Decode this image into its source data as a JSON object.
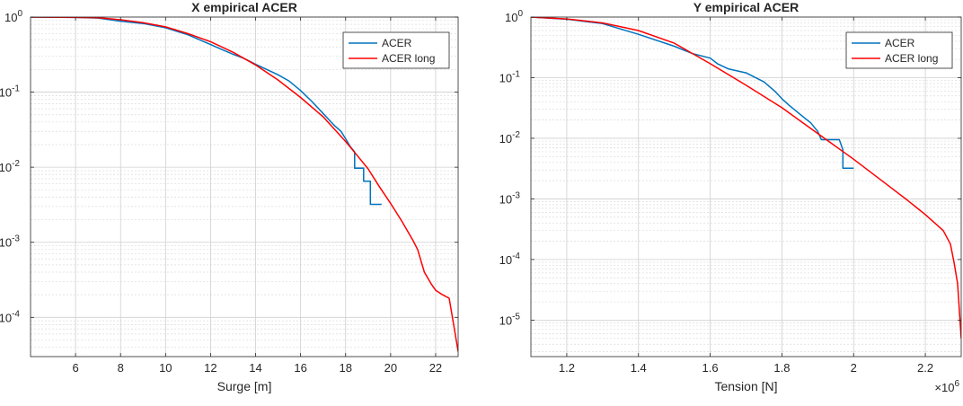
{
  "chart_data": [
    {
      "type": "line",
      "title": "X empirical ACER",
      "xlabel": "Surge [m]",
      "ylabel": "",
      "xlim": [
        4,
        23
      ],
      "ylim": [
        3e-05,
        1
      ],
      "yscale": "log",
      "x_ticks": [
        6,
        8,
        10,
        12,
        14,
        16,
        18,
        20,
        22
      ],
      "y_ticks": [
        {
          "value": 1,
          "base": "10",
          "exp": "0"
        },
        {
          "value": 0.1,
          "base": "10",
          "exp": "-1"
        },
        {
          "value": 0.01,
          "base": "10",
          "exp": "-2"
        },
        {
          "value": 0.001,
          "base": "10",
          "exp": "-3"
        },
        {
          "value": 0.0001,
          "base": "10",
          "exp": "-4"
        }
      ],
      "grid": true,
      "legend_position": "top-right",
      "series": [
        {
          "name": "ACER",
          "color": "#0072BD",
          "x": [
            4,
            6,
            7,
            8,
            9,
            10,
            11,
            12,
            12.5,
            13,
            13.5,
            14,
            14.5,
            15,
            15.5,
            16,
            16.5,
            17,
            17.5,
            17.8,
            18,
            18.2,
            18.4,
            18.4,
            18.5,
            18.8,
            18.8,
            19.0,
            19.0,
            19.1,
            19.1,
            19.3,
            19.6
          ],
          "y": [
            1,
            0.99,
            0.97,
            0.88,
            0.82,
            0.72,
            0.58,
            0.43,
            0.37,
            0.32,
            0.28,
            0.235,
            0.2,
            0.17,
            0.14,
            0.105,
            0.075,
            0.052,
            0.036,
            0.03,
            0.024,
            0.019,
            0.016,
            0.0097,
            0.0097,
            0.0097,
            0.0065,
            0.0065,
            0.0065,
            0.0065,
            0.0032,
            0.0032,
            0.0032
          ]
        },
        {
          "name": "ACER long",
          "color": "#FF0000",
          "x": [
            4,
            6,
            7,
            8,
            9,
            10,
            11,
            12,
            13,
            14,
            15,
            16,
            17,
            18,
            18.5,
            19,
            19.5,
            20,
            20.5,
            21,
            21.2,
            21.5,
            21.8,
            22,
            22.3,
            22.6,
            22.8,
            23
          ],
          "y": [
            1,
            0.99,
            0.98,
            0.92,
            0.84,
            0.74,
            0.6,
            0.47,
            0.34,
            0.23,
            0.145,
            0.085,
            0.047,
            0.022,
            0.0145,
            0.0095,
            0.0055,
            0.0033,
            0.0019,
            0.00105,
            0.0008,
            0.0004,
            0.00028,
            0.00023,
            0.0002,
            0.00018,
            8e-05,
            3.5e-05
          ]
        }
      ]
    },
    {
      "type": "line",
      "title": "Y empirical ACER",
      "xlabel": "Tension [N]",
      "ylabel": "",
      "x_multiplier": {
        "base": "×10",
        "exp": "6"
      },
      "xlim": [
        1.1,
        2.3
      ],
      "ylim": [
        2.5e-06,
        1
      ],
      "yscale": "log",
      "x_ticks": [
        1.2,
        1.4,
        1.6,
        1.8,
        2,
        2.2
      ],
      "y_ticks": [
        {
          "value": 1,
          "base": "10",
          "exp": "0"
        },
        {
          "value": 0.1,
          "base": "10",
          "exp": "-1"
        },
        {
          "value": 0.01,
          "base": "10",
          "exp": "-2"
        },
        {
          "value": 0.001,
          "base": "10",
          "exp": "-3"
        },
        {
          "value": 0.0001,
          "base": "10",
          "exp": "-4"
        },
        {
          "value": 1e-05,
          "base": "10",
          "exp": "-5"
        }
      ],
      "grid": true,
      "legend_position": "top-right",
      "series": [
        {
          "name": "ACER",
          "color": "#0072BD",
          "x": [
            1.1,
            1.2,
            1.3,
            1.4,
            1.5,
            1.55,
            1.6,
            1.62,
            1.65,
            1.7,
            1.75,
            1.78,
            1.8,
            1.82,
            1.85,
            1.88,
            1.9,
            1.91,
            1.93,
            1.96,
            1.97,
            1.97,
            2.0
          ],
          "y": [
            1,
            0.92,
            0.78,
            0.52,
            0.33,
            0.25,
            0.21,
            0.17,
            0.14,
            0.12,
            0.085,
            0.06,
            0.045,
            0.035,
            0.025,
            0.018,
            0.013,
            0.0095,
            0.0095,
            0.0095,
            0.0065,
            0.0032,
            0.0032
          ]
        },
        {
          "name": "ACER long",
          "color": "#FF0000",
          "x": [
            1.1,
            1.2,
            1.3,
            1.4,
            1.5,
            1.6,
            1.7,
            1.8,
            1.9,
            2.0,
            2.1,
            2.15,
            2.2,
            2.25,
            2.27,
            2.28,
            2.29,
            2.3
          ],
          "y": [
            1,
            0.93,
            0.8,
            0.6,
            0.37,
            0.17,
            0.075,
            0.032,
            0.012,
            0.0045,
            0.0016,
            0.00095,
            0.00055,
            0.0003,
            0.00018,
            9e-05,
            4e-05,
            5e-06
          ]
        }
      ]
    }
  ]
}
